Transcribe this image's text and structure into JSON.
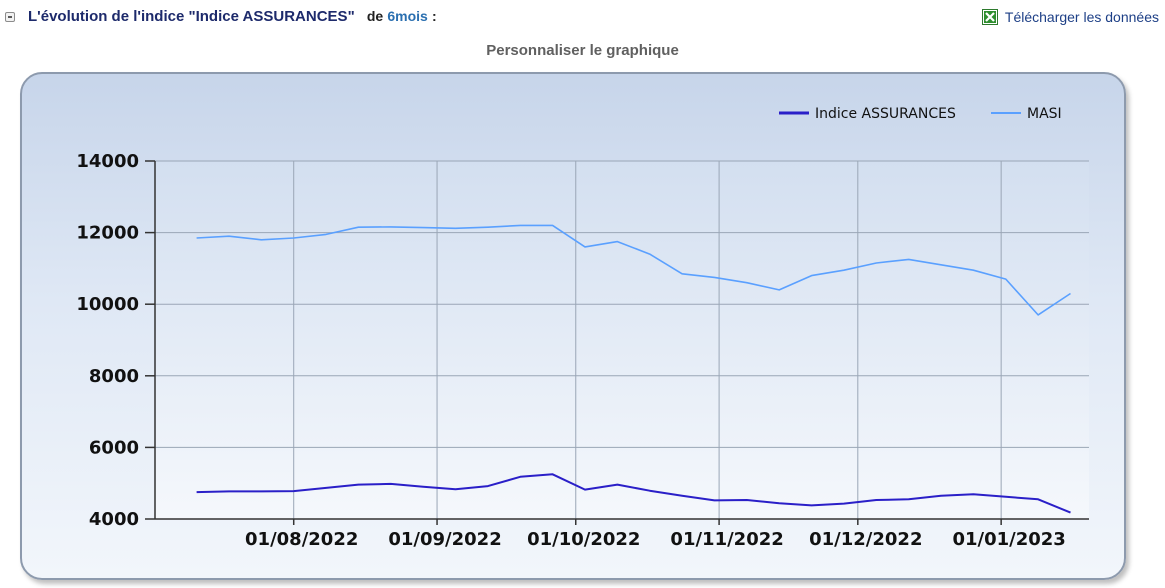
{
  "header": {
    "title": "L'évolution de l'indice \"Indice ASSURANCES\"",
    "de_label": "de",
    "period_link": "6mois",
    "colon": ":",
    "download_label": "Télécharger les données",
    "download_icon": "excel-icon",
    "collapse_icon": "collapse-icon"
  },
  "customize_label": "Personnaliser le graphique",
  "chart_data": {
    "type": "line",
    "title": "",
    "xlabel": "",
    "ylabel": "",
    "ylim": [
      4000,
      14000
    ],
    "y_ticks": [
      "4000",
      "6000",
      "8000",
      "10000",
      "12000",
      "14000"
    ],
    "x_ticks": [
      "01/08/2022",
      "01/09/2022",
      "01/10/2022",
      "01/11/2022",
      "01/12/2022",
      "01/01/2023"
    ],
    "grid": true,
    "legend_position": "top-right",
    "x": [
      "2022-07-11",
      "2022-07-18",
      "2022-07-25",
      "2022-08-01",
      "2022-08-08",
      "2022-08-15",
      "2022-08-22",
      "2022-08-29",
      "2022-09-05",
      "2022-09-12",
      "2022-09-19",
      "2022-09-26",
      "2022-10-03",
      "2022-10-10",
      "2022-10-17",
      "2022-10-24",
      "2022-10-31",
      "2022-11-07",
      "2022-11-14",
      "2022-11-21",
      "2022-11-28",
      "2022-12-05",
      "2022-12-12",
      "2022-12-19",
      "2022-12-26",
      "2023-01-02",
      "2023-01-09",
      "2023-01-16"
    ],
    "series": [
      {
        "name": "Indice ASSURANCES",
        "color": "#2a1fc8",
        "values": [
          4750,
          4770,
          4770,
          4780,
          4870,
          4960,
          4980,
          4900,
          4830,
          4920,
          5180,
          5250,
          4820,
          4960,
          4790,
          4650,
          4520,
          4530,
          4440,
          4380,
          4430,
          4530,
          4550,
          4650,
          4690,
          4620,
          4550,
          4180
        ]
      },
      {
        "name": "MASI",
        "color": "#5aa0ff",
        "values": [
          11850,
          11900,
          11800,
          11850,
          11950,
          12150,
          12160,
          12140,
          12120,
          12150,
          12200,
          12200,
          11600,
          11750,
          11400,
          10850,
          10750,
          10600,
          10400,
          10800,
          10950,
          11150,
          11250,
          11100,
          10950,
          10700,
          9700,
          10300
        ]
      }
    ]
  }
}
